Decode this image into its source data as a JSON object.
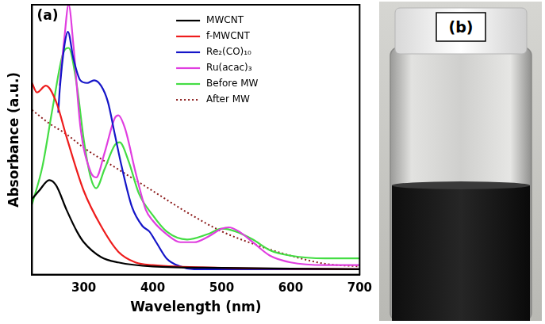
{
  "chart_data": {
    "type": "line",
    "annotations": [
      "(a)"
    ],
    "x_label": "Wavelength (nm)",
    "y_label": "Absorbance (a.u.)",
    "xlim": [
      225,
      700
    ],
    "xticks": [
      300,
      400,
      500,
      600,
      700
    ],
    "ylim": [
      0,
      1
    ],
    "yticks": [],
    "tick_labels": "x",
    "grid": false,
    "legend": "top",
    "series": [
      {
        "name": "MWCNT",
        "color": "#000000",
        "line_style": "solid",
        "x": [
          225,
          235,
          250,
          260,
          275,
          290,
          300,
          325,
          350,
          400,
          500,
          600,
          700
        ],
        "values": [
          0.28,
          0.31,
          0.35,
          0.33,
          0.24,
          0.16,
          0.12,
          0.065,
          0.045,
          0.03,
          0.025,
          0.022,
          0.02
        ]
      },
      {
        "name": "f-MWCNT",
        "color": "#ee1c1c",
        "line_style": "solid",
        "x": [
          225,
          232,
          245,
          260,
          275,
          300,
          325,
          350,
          375,
          400,
          500,
          700
        ],
        "values": [
          0.71,
          0.675,
          0.7,
          0.64,
          0.51,
          0.31,
          0.18,
          0.085,
          0.045,
          0.035,
          0.025,
          0.02
        ]
      },
      {
        "name": "Re₂(CO)₁₀",
        "color": "#1515c8",
        "line_style": "solid",
        "x": [
          263,
          265,
          272,
          277,
          285,
          295,
          305,
          315,
          325,
          335,
          345,
          355,
          370,
          385,
          395,
          405,
          420,
          440,
          460,
          500,
          700
        ],
        "values": [
          0.6,
          0.68,
          0.85,
          0.9,
          0.8,
          0.72,
          0.71,
          0.72,
          0.7,
          0.64,
          0.52,
          0.4,
          0.25,
          0.18,
          0.16,
          0.12,
          0.06,
          0.03,
          0.02,
          0.02,
          0.02
        ]
      },
      {
        "name": "Ru(acac)₃",
        "color": "#e03ee0",
        "line_style": "solid",
        "x": [
          265,
          272,
          278,
          285,
          295,
          310,
          318,
          330,
          345,
          350,
          360,
          375,
          390,
          400,
          420,
          440,
          460,
          480,
          500,
          510,
          525,
          545,
          570,
          600,
          650,
          700
        ],
        "values": [
          0.7,
          0.88,
          1.0,
          0.85,
          0.55,
          0.38,
          0.36,
          0.45,
          0.58,
          0.59,
          0.54,
          0.38,
          0.24,
          0.2,
          0.15,
          0.12,
          0.12,
          0.14,
          0.17,
          0.175,
          0.16,
          0.12,
          0.07,
          0.045,
          0.035,
          0.035
        ]
      },
      {
        "name": "Before MW",
        "color": "#44dd44",
        "line_style": "solid",
        "x": [
          225,
          240,
          255,
          270,
          278,
          290,
          300,
          310,
          318,
          330,
          345,
          352,
          365,
          380,
          400,
          420,
          450,
          480,
          500,
          520,
          545,
          570,
          600,
          650,
          700
        ],
        "values": [
          0.26,
          0.4,
          0.62,
          0.82,
          0.84,
          0.7,
          0.5,
          0.36,
          0.32,
          0.39,
          0.48,
          0.49,
          0.42,
          0.3,
          0.22,
          0.16,
          0.13,
          0.15,
          0.17,
          0.16,
          0.13,
          0.09,
          0.07,
          0.06,
          0.06
        ]
      },
      {
        "name": "After MW",
        "color": "#8b1a1a",
        "line_style": "dotted",
        "x": [
          225,
          250,
          275,
          300,
          350,
          400,
          450,
          500,
          550,
          600,
          650,
          700
        ],
        "values": [
          0.61,
          0.56,
          0.52,
          0.47,
          0.39,
          0.31,
          0.23,
          0.16,
          0.11,
          0.07,
          0.04,
          0.03
        ]
      }
    ]
  },
  "photo": {
    "label": "(b)"
  }
}
